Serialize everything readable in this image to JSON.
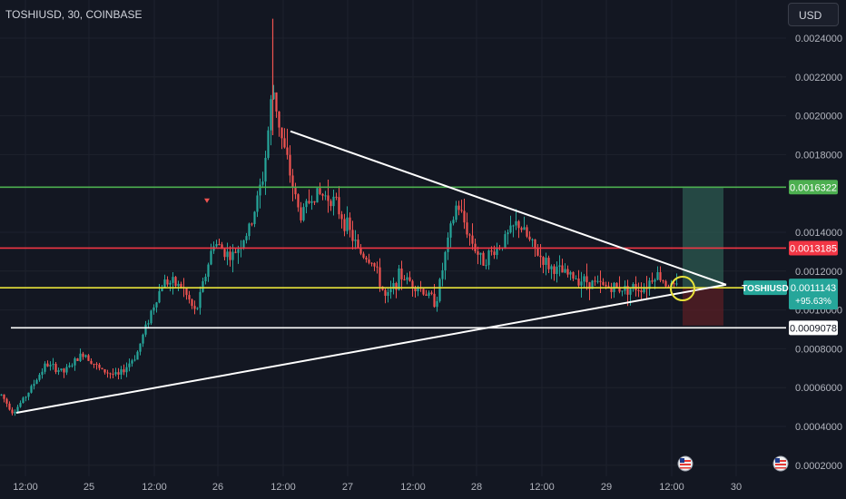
{
  "header": {
    "symbol_title": "TOSHIUSD, 30, COINBASE",
    "currency_button": "USD"
  },
  "colors": {
    "background": "#131722",
    "grid": "#1e222d",
    "up_candle": "#26a69a",
    "down_candle": "#ef5350",
    "resistance_green": "#4caf50",
    "resistance_red": "#f23645",
    "current_level_yellow": "#e8e23a",
    "support_white": "#ffffff",
    "triangle_lines": "#ffffff",
    "target_zone": "#2e5e52",
    "stop_zone": "#5a1f24"
  },
  "icons": {
    "flag_badge": "us-flag-icon",
    "sell_arrow": "down-triangle-icon"
  },
  "chart_data": {
    "type": "candlestick",
    "symbol": "TOSHIUSD",
    "interval": "30",
    "exchange": "COINBASE",
    "ylim": [
      0.00015,
      0.0025
    ],
    "y_ticks": [
      "0.0024000",
      "0.0022000",
      "0.0020000",
      "0.0018000",
      "0.0014000",
      "0.0012000",
      "0.0010000",
      "0.0008000",
      "0.0006000",
      "0.0004000",
      "0.0002000"
    ],
    "x_ticks": [
      "12:00",
      "25",
      "12:00",
      "26",
      "12:00",
      "27",
      "12:00",
      "28",
      "12:00",
      "29",
      "12:00",
      "30"
    ],
    "price_path": [
      [
        0,
        0.00057
      ],
      [
        14,
        0.00047
      ],
      [
        30,
        0.00057
      ],
      [
        50,
        0.00072
      ],
      [
        70,
        0.00068
      ],
      [
        92,
        0.00078
      ],
      [
        110,
        0.00069
      ],
      [
        130,
        0.00066
      ],
      [
        150,
        0.00077
      ],
      [
        165,
        0.00098
      ],
      [
        180,
        0.00115
      ],
      [
        200,
        0.00112
      ],
      [
        215,
        0.00098
      ],
      [
        235,
        0.00135
      ],
      [
        255,
        0.00127
      ],
      [
        275,
        0.00142
      ],
      [
        290,
        0.0017
      ],
      [
        300,
        0.00215
      ],
      [
        310,
        0.00188
      ],
      [
        320,
        0.00168
      ],
      [
        330,
        0.00148
      ],
      [
        345,
        0.0016
      ],
      [
        365,
        0.00158
      ],
      [
        380,
        0.00145
      ],
      [
        395,
        0.0013
      ],
      [
        410,
        0.00125
      ],
      [
        425,
        0.00105
      ],
      [
        440,
        0.00118
      ],
      [
        460,
        0.00112
      ],
      [
        480,
        0.00104
      ],
      [
        492,
        0.00133
      ],
      [
        503,
        0.00155
      ],
      [
        515,
        0.0014
      ],
      [
        530,
        0.00125
      ],
      [
        550,
        0.00133
      ],
      [
        570,
        0.00145
      ],
      [
        590,
        0.0013
      ],
      [
        605,
        0.00122
      ],
      [
        625,
        0.00118
      ],
      [
        645,
        0.00115
      ],
      [
        665,
        0.00112
      ],
      [
        690,
        0.00111
      ],
      [
        710,
        0.00112
      ],
      [
        722,
        0.00119
      ],
      [
        735,
        0.00113
      ],
      [
        745,
        0.001114
      ]
    ],
    "sell_signal": {
      "x": 228,
      "y": 0.00156
    },
    "lines": [
      {
        "kind": "horizontal",
        "price": 0.0016322,
        "label": "0.0016322",
        "color": "#4caf50"
      },
      {
        "kind": "horizontal",
        "price": 0.0013185,
        "label": "0.0013185",
        "color": "#f23645"
      },
      {
        "kind": "horizontal",
        "price": 0.0011143,
        "label": "",
        "color": "#e8e23a"
      },
      {
        "kind": "horizontal",
        "price": 0.0009078,
        "label": "0.0009078",
        "color": "#ffffff"
      }
    ],
    "triangle": {
      "upper": [
        [
          320,
          0.00192
        ],
        [
          800,
          0.00113
        ]
      ],
      "lower": [
        [
          18,
          0.00047
        ],
        [
          800,
          0.00113
        ]
      ]
    },
    "highlight_circle": {
      "x": 752,
      "price": 0.00111
    },
    "position_tool": {
      "x1": 752,
      "x2": 797,
      "target": 0.0016322,
      "entry": 0.0011143,
      "stop": 0.00092
    },
    "current_price": {
      "symbol": "TOSHIUSD",
      "value": "0.0011143",
      "change": "+95.63%"
    },
    "flag_badges": [
      {
        "x": 755
      },
      {
        "x": 860
      }
    ]
  }
}
